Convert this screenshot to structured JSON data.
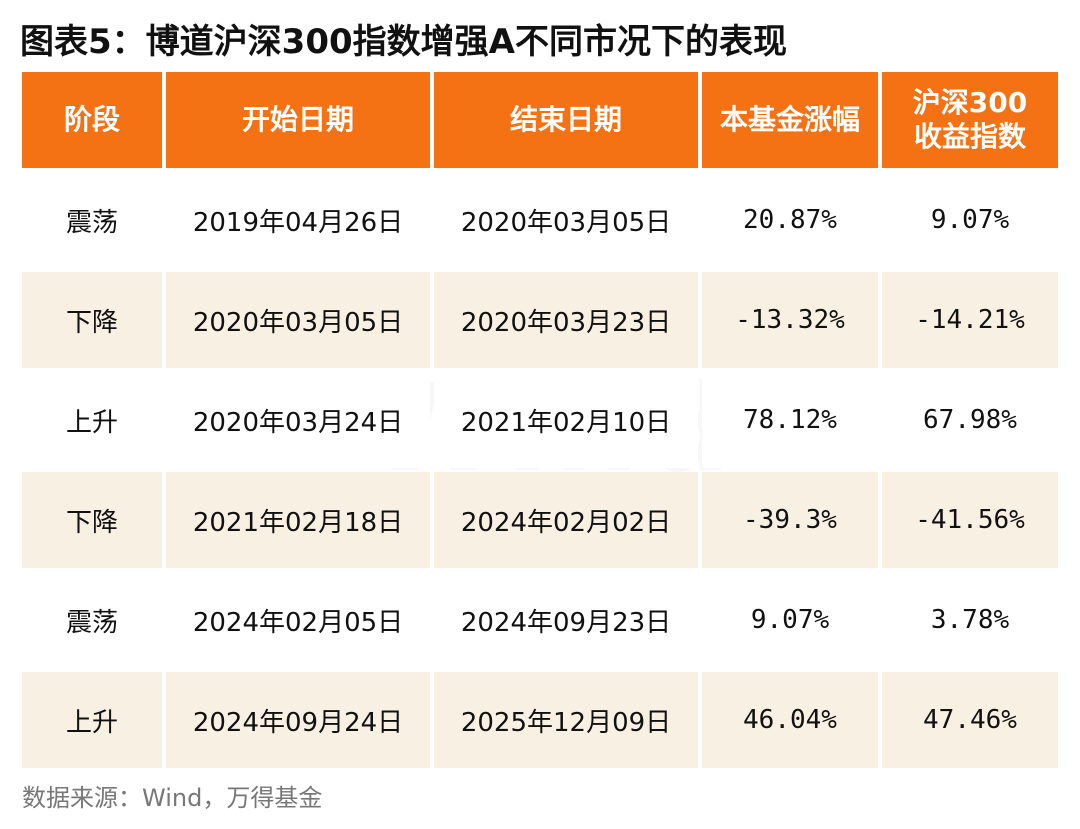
{
  "title": "图表5：博道沪深300指数增强A不同市况下的表现",
  "headers": [
    "阶段",
    "开始日期",
    "结束日期",
    "本基金涨幅",
    "沪深300\n收益指数"
  ],
  "headers_split": {
    "col5_line1": "沪深300",
    "col5_line2": "收益指数"
  },
  "rows": [
    [
      "震荡",
      "2019年04月26日",
      "2020年03月05日",
      "20.87%",
      "9.07%"
    ],
    [
      "下降",
      "2020年03月05日",
      "2020年03月23日",
      "-13.32%",
      "-14.21%"
    ],
    [
      "上升",
      "2020年03月24日",
      "2021年02月10日",
      "78.12%",
      "67.98%"
    ],
    [
      "下降",
      "2021年02月18日",
      "2024年02月02日",
      "-39.3%",
      "-41.56%"
    ],
    [
      "震荡",
      "2024年02月05日",
      "2024年09月23日",
      "9.07%",
      "3.78%"
    ],
    [
      "上升",
      "2024年09月24日",
      "2025年12月09日",
      "46.04%",
      "47.46%"
    ]
  ],
  "watermark": "Wind",
  "source": "数据来源：Wind，万得基金",
  "colors": {
    "header_bg": "#f47214",
    "stripe_bg": "#f8f0e3"
  }
}
